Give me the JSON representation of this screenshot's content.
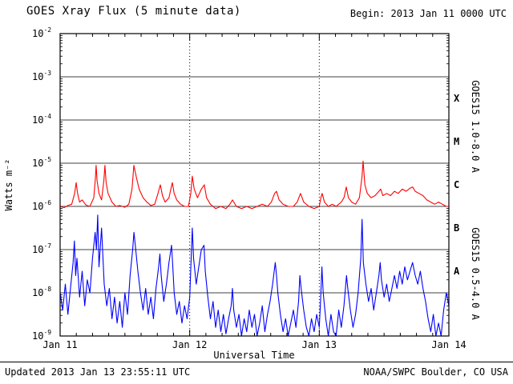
{
  "header": {
    "title": "GOES Xray Flux (5 minute data)",
    "begin_label": "Begin:  2013 Jan 11 0000 UTC"
  },
  "footer": {
    "updated": "Updated 2013 Jan 13 23:55:11 UTC",
    "source": "NOAA/SWPC Boulder, CO USA"
  },
  "chart_data": {
    "type": "line",
    "title": "GOES Xray Flux (5 minute data)",
    "xlabel": "Universal Time",
    "ylabel": "Watts m⁻²",
    "x_ticks": [
      "Jan 11",
      "Jan 12",
      "Jan 13",
      "Jan 14"
    ],
    "x_range_days": [
      0,
      3
    ],
    "y_log_range": [
      -9,
      -2
    ],
    "y_tick_exponents": [
      -2,
      -3,
      -4,
      -5,
      -6,
      -7,
      -8,
      -9
    ],
    "flare_classes": [
      "X",
      "M",
      "C",
      "B",
      "A"
    ],
    "grid": {
      "vertical_dotted_at_days": [
        1,
        2
      ],
      "horizontal_at_each_decade": true
    },
    "frame_color": "#000000",
    "series": [
      {
        "name": "GOES15 1.0-8.0 A",
        "color": "#ff0000",
        "points": [
          [
            0.0,
            -6.0
          ],
          [
            0.03,
            -6.03
          ],
          [
            0.06,
            -5.98
          ],
          [
            0.09,
            -5.95
          ],
          [
            0.112,
            -5.7
          ],
          [
            0.124,
            -5.45
          ],
          [
            0.135,
            -5.7
          ],
          [
            0.15,
            -5.9
          ],
          [
            0.17,
            -5.85
          ],
          [
            0.2,
            -5.97
          ],
          [
            0.23,
            -6.0
          ],
          [
            0.26,
            -5.8
          ],
          [
            0.272,
            -5.35
          ],
          [
            0.278,
            -5.05
          ],
          [
            0.285,
            -5.4
          ],
          [
            0.3,
            -5.7
          ],
          [
            0.32,
            -5.85
          ],
          [
            0.338,
            -5.4
          ],
          [
            0.346,
            -5.05
          ],
          [
            0.355,
            -5.45
          ],
          [
            0.37,
            -5.7
          ],
          [
            0.4,
            -5.9
          ],
          [
            0.43,
            -6.0
          ],
          [
            0.46,
            -5.98
          ],
          [
            0.5,
            -6.02
          ],
          [
            0.53,
            -5.95
          ],
          [
            0.555,
            -5.6
          ],
          [
            0.569,
            -5.05
          ],
          [
            0.59,
            -5.35
          ],
          [
            0.61,
            -5.6
          ],
          [
            0.64,
            -5.8
          ],
          [
            0.67,
            -5.9
          ],
          [
            0.7,
            -5.98
          ],
          [
            0.73,
            -5.95
          ],
          [
            0.755,
            -5.7
          ],
          [
            0.773,
            -5.5
          ],
          [
            0.79,
            -5.75
          ],
          [
            0.81,
            -5.9
          ],
          [
            0.84,
            -5.8
          ],
          [
            0.858,
            -5.55
          ],
          [
            0.866,
            -5.45
          ],
          [
            0.88,
            -5.7
          ],
          [
            0.9,
            -5.85
          ],
          [
            0.93,
            -5.95
          ],
          [
            0.96,
            -6.0
          ],
          [
            0.99,
            -6.0
          ],
          [
            1.008,
            -5.7
          ],
          [
            1.02,
            -5.3
          ],
          [
            1.035,
            -5.6
          ],
          [
            1.06,
            -5.8
          ],
          [
            1.09,
            -5.6
          ],
          [
            1.113,
            -5.5
          ],
          [
            1.13,
            -5.8
          ],
          [
            1.16,
            -5.95
          ],
          [
            1.2,
            -6.05
          ],
          [
            1.24,
            -6.0
          ],
          [
            1.28,
            -6.05
          ],
          [
            1.31,
            -5.95
          ],
          [
            1.33,
            -5.85
          ],
          [
            1.36,
            -6.0
          ],
          [
            1.4,
            -6.05
          ],
          [
            1.44,
            -6.0
          ],
          [
            1.48,
            -6.05
          ],
          [
            1.52,
            -6.0
          ],
          [
            1.56,
            -5.95
          ],
          [
            1.6,
            -6.0
          ],
          [
            1.63,
            -5.9
          ],
          [
            1.655,
            -5.7
          ],
          [
            1.67,
            -5.65
          ],
          [
            1.69,
            -5.85
          ],
          [
            1.72,
            -5.95
          ],
          [
            1.76,
            -6.0
          ],
          [
            1.8,
            -6.0
          ],
          [
            1.83,
            -5.9
          ],
          [
            1.855,
            -5.7
          ],
          [
            1.88,
            -5.9
          ],
          [
            1.92,
            -6.0
          ],
          [
            1.96,
            -6.05
          ],
          [
            2.0,
            -6.0
          ],
          [
            2.012,
            -5.8
          ],
          [
            2.022,
            -5.7
          ],
          [
            2.04,
            -5.9
          ],
          [
            2.07,
            -6.0
          ],
          [
            2.1,
            -5.95
          ],
          [
            2.13,
            -6.0
          ],
          [
            2.17,
            -5.9
          ],
          [
            2.19,
            -5.8
          ],
          [
            2.208,
            -5.55
          ],
          [
            2.225,
            -5.8
          ],
          [
            2.25,
            -5.9
          ],
          [
            2.28,
            -5.95
          ],
          [
            2.31,
            -5.8
          ],
          [
            2.33,
            -5.3
          ],
          [
            2.338,
            -4.95
          ],
          [
            2.352,
            -5.5
          ],
          [
            2.37,
            -5.7
          ],
          [
            2.4,
            -5.8
          ],
          [
            2.43,
            -5.75
          ],
          [
            2.46,
            -5.65
          ],
          [
            2.474,
            -5.6
          ],
          [
            2.49,
            -5.75
          ],
          [
            2.52,
            -5.7
          ],
          [
            2.55,
            -5.75
          ],
          [
            2.58,
            -5.65
          ],
          [
            2.61,
            -5.7
          ],
          [
            2.64,
            -5.6
          ],
          [
            2.67,
            -5.65
          ],
          [
            2.7,
            -5.58
          ],
          [
            2.72,
            -5.55
          ],
          [
            2.74,
            -5.65
          ],
          [
            2.77,
            -5.7
          ],
          [
            2.8,
            -5.75
          ],
          [
            2.83,
            -5.85
          ],
          [
            2.86,
            -5.9
          ],
          [
            2.89,
            -5.95
          ],
          [
            2.92,
            -5.9
          ],
          [
            2.95,
            -5.95
          ],
          [
            2.98,
            -6.0
          ],
          [
            3.0,
            -6.0
          ]
        ]
      },
      {
        "name": "GOES15 0.5-4.0 A",
        "color": "#0000ff",
        "points": [
          [
            0.0,
            -8.0
          ],
          [
            0.02,
            -8.4
          ],
          [
            0.04,
            -7.8
          ],
          [
            0.06,
            -8.5
          ],
          [
            0.08,
            -7.9
          ],
          [
            0.1,
            -7.3
          ],
          [
            0.11,
            -6.8
          ],
          [
            0.12,
            -7.6
          ],
          [
            0.13,
            -7.2
          ],
          [
            0.15,
            -8.1
          ],
          [
            0.17,
            -7.5
          ],
          [
            0.19,
            -8.3
          ],
          [
            0.21,
            -7.7
          ],
          [
            0.23,
            -8.0
          ],
          [
            0.25,
            -7.2
          ],
          [
            0.27,
            -6.6
          ],
          [
            0.28,
            -7.0
          ],
          [
            0.29,
            -6.2
          ],
          [
            0.3,
            -7.4
          ],
          [
            0.32,
            -6.5
          ],
          [
            0.34,
            -7.8
          ],
          [
            0.36,
            -8.3
          ],
          [
            0.38,
            -7.9
          ],
          [
            0.4,
            -8.6
          ],
          [
            0.42,
            -8.1
          ],
          [
            0.44,
            -8.7
          ],
          [
            0.46,
            -8.2
          ],
          [
            0.48,
            -8.8
          ],
          [
            0.5,
            -8.0
          ],
          [
            0.52,
            -8.5
          ],
          [
            0.54,
            -7.6
          ],
          [
            0.56,
            -7.0
          ],
          [
            0.57,
            -6.6
          ],
          [
            0.58,
            -6.9
          ],
          [
            0.6,
            -7.5
          ],
          [
            0.62,
            -8.0
          ],
          [
            0.64,
            -8.4
          ],
          [
            0.66,
            -7.9
          ],
          [
            0.68,
            -8.5
          ],
          [
            0.7,
            -8.1
          ],
          [
            0.72,
            -8.6
          ],
          [
            0.74,
            -7.9
          ],
          [
            0.76,
            -7.4
          ],
          [
            0.77,
            -7.1
          ],
          [
            0.78,
            -7.6
          ],
          [
            0.8,
            -8.2
          ],
          [
            0.82,
            -7.8
          ],
          [
            0.84,
            -7.3
          ],
          [
            0.86,
            -6.9
          ],
          [
            0.87,
            -7.4
          ],
          [
            0.88,
            -8.0
          ],
          [
            0.9,
            -8.5
          ],
          [
            0.92,
            -8.2
          ],
          [
            0.94,
            -8.7
          ],
          [
            0.96,
            -8.3
          ],
          [
            0.98,
            -8.6
          ],
          [
            1.0,
            -8.1
          ],
          [
            1.01,
            -7.3
          ],
          [
            1.02,
            -6.5
          ],
          [
            1.03,
            -7.2
          ],
          [
            1.05,
            -7.8
          ],
          [
            1.07,
            -7.4
          ],
          [
            1.09,
            -7.0
          ],
          [
            1.11,
            -6.9
          ],
          [
            1.12,
            -7.5
          ],
          [
            1.14,
            -8.1
          ],
          [
            1.16,
            -8.6
          ],
          [
            1.18,
            -8.2
          ],
          [
            1.2,
            -8.8
          ],
          [
            1.22,
            -8.4
          ],
          [
            1.24,
            -8.9
          ],
          [
            1.26,
            -8.5
          ],
          [
            1.28,
            -8.95
          ],
          [
            1.3,
            -8.6
          ],
          [
            1.32,
            -8.3
          ],
          [
            1.33,
            -7.9
          ],
          [
            1.34,
            -8.4
          ],
          [
            1.36,
            -8.8
          ],
          [
            1.38,
            -8.5
          ],
          [
            1.4,
            -9.0
          ],
          [
            1.42,
            -8.6
          ],
          [
            1.44,
            -8.9
          ],
          [
            1.46,
            -8.4
          ],
          [
            1.48,
            -8.8
          ],
          [
            1.5,
            -8.5
          ],
          [
            1.52,
            -9.0
          ],
          [
            1.54,
            -8.7
          ],
          [
            1.56,
            -8.3
          ],
          [
            1.58,
            -8.9
          ],
          [
            1.6,
            -8.5
          ],
          [
            1.62,
            -8.2
          ],
          [
            1.64,
            -7.8
          ],
          [
            1.66,
            -7.3
          ],
          [
            1.67,
            -7.6
          ],
          [
            1.68,
            -8.0
          ],
          [
            1.7,
            -8.5
          ],
          [
            1.72,
            -8.9
          ],
          [
            1.74,
            -8.6
          ],
          [
            1.76,
            -9.0
          ],
          [
            1.78,
            -8.7
          ],
          [
            1.8,
            -8.4
          ],
          [
            1.82,
            -8.8
          ],
          [
            1.84,
            -8.2
          ],
          [
            1.85,
            -7.6
          ],
          [
            1.86,
            -7.9
          ],
          [
            1.88,
            -8.4
          ],
          [
            1.9,
            -8.8
          ],
          [
            1.92,
            -9.0
          ],
          [
            1.94,
            -8.6
          ],
          [
            1.96,
            -8.9
          ],
          [
            1.98,
            -8.5
          ],
          [
            2.0,
            -8.8
          ],
          [
            2.01,
            -8.2
          ],
          [
            2.02,
            -7.4
          ],
          [
            2.03,
            -8.0
          ],
          [
            2.05,
            -8.6
          ],
          [
            2.07,
            -9.0
          ],
          [
            2.09,
            -8.5
          ],
          [
            2.11,
            -8.9
          ],
          [
            2.13,
            -9.0
          ],
          [
            2.15,
            -8.4
          ],
          [
            2.17,
            -8.8
          ],
          [
            2.19,
            -8.3
          ],
          [
            2.21,
            -7.6
          ],
          [
            2.22,
            -7.9
          ],
          [
            2.24,
            -8.4
          ],
          [
            2.26,
            -8.8
          ],
          [
            2.28,
            -8.5
          ],
          [
            2.3,
            -8.0
          ],
          [
            2.32,
            -7.2
          ],
          [
            2.33,
            -6.3
          ],
          [
            2.34,
            -7.3
          ],
          [
            2.36,
            -7.8
          ],
          [
            2.38,
            -8.2
          ],
          [
            2.4,
            -7.9
          ],
          [
            2.42,
            -8.4
          ],
          [
            2.44,
            -8.0
          ],
          [
            2.46,
            -7.6
          ],
          [
            2.47,
            -7.3
          ],
          [
            2.48,
            -7.7
          ],
          [
            2.5,
            -8.1
          ],
          [
            2.52,
            -7.8
          ],
          [
            2.54,
            -8.2
          ],
          [
            2.56,
            -7.9
          ],
          [
            2.58,
            -7.6
          ],
          [
            2.6,
            -7.9
          ],
          [
            2.62,
            -7.5
          ],
          [
            2.64,
            -7.8
          ],
          [
            2.66,
            -7.4
          ],
          [
            2.68,
            -7.7
          ],
          [
            2.7,
            -7.5
          ],
          [
            2.72,
            -7.3
          ],
          [
            2.74,
            -7.6
          ],
          [
            2.76,
            -7.8
          ],
          [
            2.78,
            -7.5
          ],
          [
            2.8,
            -7.9
          ],
          [
            2.82,
            -8.2
          ],
          [
            2.84,
            -8.6
          ],
          [
            2.86,
            -8.9
          ],
          [
            2.88,
            -8.5
          ],
          [
            2.9,
            -9.0
          ],
          [
            2.92,
            -8.7
          ],
          [
            2.94,
            -9.0
          ],
          [
            2.96,
            -8.4
          ],
          [
            2.98,
            -8.0
          ],
          [
            3.0,
            -8.3
          ]
        ]
      }
    ]
  }
}
